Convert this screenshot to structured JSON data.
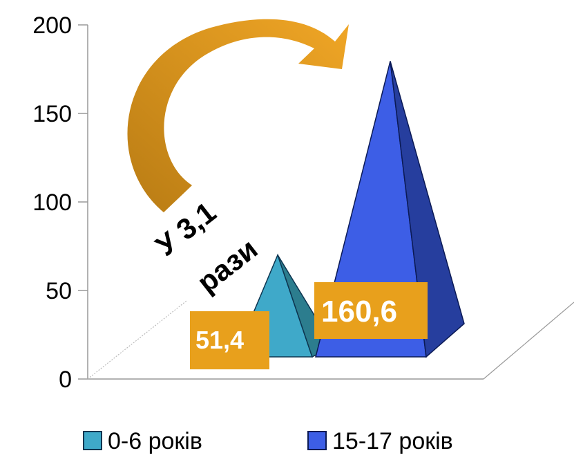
{
  "chart_data": {
    "type": "bar",
    "subtype": "3d-pyramid",
    "categories": [
      "0-6 років",
      "15-17 років"
    ],
    "values": [
      51.4,
      160.6
    ],
    "data_labels": [
      "51,4",
      "160,6"
    ],
    "yticks": [
      "0",
      "50",
      "100",
      "150",
      "200"
    ],
    "ylim": [
      0,
      200
    ],
    "legend": [
      "0-6 років",
      "15-17 років"
    ],
    "legend_position": "bottom",
    "colors": {
      "series1": "#3fa9c9",
      "series2": "#3d5ee6",
      "badge": "#e8a01c",
      "arrow": "#d8941c"
    },
    "annotation": {
      "line1": "У 3,1",
      "line2": "рази"
    }
  }
}
